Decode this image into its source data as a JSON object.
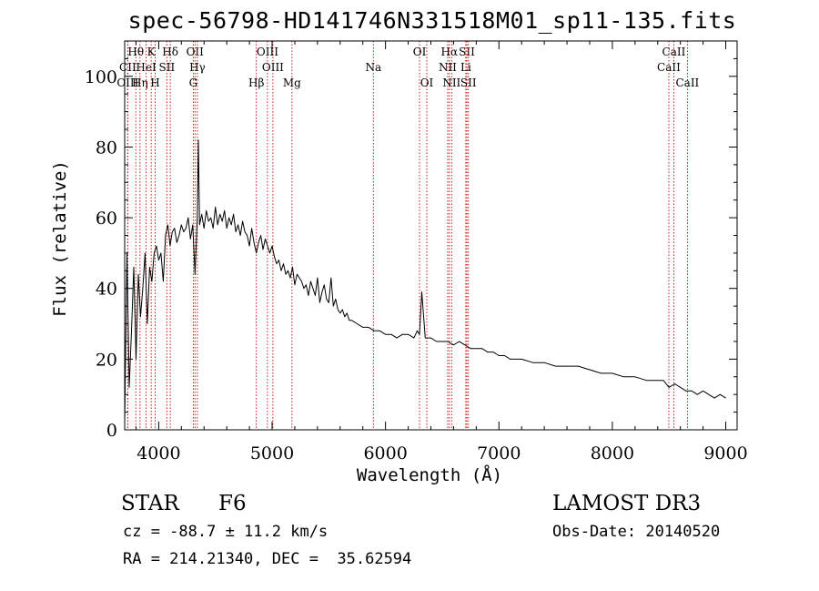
{
  "title": "spec-56798-HD141746N331518M01_sp11-135.fits",
  "object_class": "STAR",
  "subclass": "F6",
  "survey": "LAMOST DR3",
  "redshift_text": "cz = -88.7 ± 11.2 km/s",
  "obs_date_text": "Obs-Date: 20140520",
  "coords_text": "RA = 214.21340, DEC =  35.62594",
  "colors": {
    "spectrum": "#000000",
    "line_marker": "#cc0000",
    "background": "#ffffff"
  },
  "chart_data": {
    "type": "line",
    "title": "spec-56798-HD141746N331518M01_sp11-135.fits",
    "xlabel": "Wavelength (Å)",
    "ylabel": "Flux (relative)",
    "xlim": [
      3700,
      9100
    ],
    "ylim": [
      0,
      110
    ],
    "xticks": [
      4000,
      5000,
      6000,
      7000,
      8000,
      9000
    ],
    "yticks": [
      0,
      20,
      40,
      60,
      80,
      100
    ],
    "grid": false,
    "series": [
      {
        "name": "spectrum",
        "x": [
          3700,
          3720,
          3740,
          3760,
          3780,
          3800,
          3820,
          3840,
          3860,
          3880,
          3900,
          3920,
          3940,
          3960,
          3980,
          4000,
          4020,
          4040,
          4060,
          4080,
          4100,
          4120,
          4140,
          4160,
          4180,
          4200,
          4220,
          4240,
          4260,
          4280,
          4300,
          4320,
          4340,
          4350,
          4360,
          4380,
          4400,
          4420,
          4440,
          4460,
          4480,
          4500,
          4520,
          4540,
          4560,
          4580,
          4600,
          4620,
          4640,
          4660,
          4680,
          4700,
          4720,
          4740,
          4760,
          4780,
          4800,
          4820,
          4840,
          4861,
          4880,
          4900,
          4920,
          4940,
          4960,
          4980,
          5000,
          5020,
          5040,
          5060,
          5080,
          5100,
          5120,
          5140,
          5160,
          5180,
          5200,
          5220,
          5240,
          5260,
          5280,
          5300,
          5320,
          5340,
          5360,
          5380,
          5400,
          5420,
          5440,
          5460,
          5480,
          5500,
          5520,
          5540,
          5560,
          5580,
          5600,
          5620,
          5640,
          5660,
          5680,
          5700,
          5750,
          5800,
          5850,
          5900,
          5950,
          6000,
          6050,
          6100,
          6150,
          6200,
          6250,
          6280,
          6300,
          6320,
          6350,
          6400,
          6450,
          6500,
          6550,
          6600,
          6650,
          6700,
          6750,
          6800,
          6850,
          6900,
          6950,
          7000,
          7050,
          7100,
          7200,
          7300,
          7400,
          7500,
          7600,
          7700,
          7800,
          7900,
          8000,
          8100,
          8200,
          8300,
          8400,
          8450,
          8500,
          8550,
          8600,
          8650,
          8700,
          8750,
          8800,
          8850,
          8900,
          8950,
          9000
        ],
        "values": [
          2,
          50,
          12,
          28,
          46,
          20,
          44,
          32,
          40,
          50,
          30,
          46,
          42,
          50,
          52,
          48,
          50,
          42,
          55,
          58,
          52,
          56,
          57,
          53,
          55,
          58,
          56,
          57,
          60,
          54,
          58,
          44,
          60,
          82,
          58,
          61,
          57,
          62,
          59,
          60,
          57,
          63,
          58,
          61,
          59,
          62,
          57,
          60,
          58,
          61,
          56,
          58,
          55,
          59,
          56,
          55,
          52,
          57,
          53,
          50,
          53,
          55,
          51,
          54,
          52,
          50,
          52,
          49,
          47,
          48,
          45,
          47,
          44,
          45,
          43,
          46,
          41,
          44,
          43,
          42,
          40,
          41,
          38,
          42,
          40,
          38,
          43,
          36,
          39,
          41,
          37,
          36,
          43,
          35,
          37,
          34,
          33,
          34,
          32,
          33,
          31,
          31,
          30,
          29,
          29,
          28,
          28,
          27,
          27,
          26,
          27,
          27,
          26,
          28,
          27,
          39,
          26,
          26,
          25,
          25,
          25,
          24,
          25,
          24,
          23,
          23,
          23,
          22,
          22,
          21,
          21,
          20,
          20,
          19,
          19,
          18,
          18,
          18,
          17,
          16,
          16,
          15,
          15,
          14,
          14,
          14,
          12,
          13,
          12,
          11,
          11,
          10,
          11,
          10,
          9,
          10,
          9
        ]
      }
    ],
    "lines": [
      {
        "name": "Hθ",
        "wave": 3798,
        "row": 1
      },
      {
        "name": "CII",
        "wave": 3727,
        "row": 2
      },
      {
        "name": "OIII",
        "wave": 3727,
        "row": 3
      },
      {
        "name": "K",
        "wave": 3934,
        "row": 1
      },
      {
        "name": "Hη",
        "wave": 3835,
        "row": 3
      },
      {
        "name": "HeI",
        "wave": 3889,
        "row": 2
      },
      {
        "name": "H",
        "wave": 3969,
        "row": 3
      },
      {
        "name": "SII",
        "wave": 4072,
        "row": 2
      },
      {
        "name": "Hδ",
        "wave": 4102,
        "row": 1
      },
      {
        "name": "OII",
        "wave": 4320,
        "row": 1
      },
      {
        "name": "Hγ",
        "wave": 4341,
        "row": 2
      },
      {
        "name": "G",
        "wave": 4305,
        "row": 3
      },
      {
        "name": "Hβ",
        "wave": 4861,
        "row": 3
      },
      {
        "name": "OIII",
        "wave": 4959,
        "row": 1
      },
      {
        "name": "OIII",
        "wave": 5007,
        "row": 2
      },
      {
        "name": "Mg",
        "wave": 5175,
        "row": 3
      },
      {
        "name": "Na",
        "wave": 5893,
        "row": 2
      },
      {
        "name": "OI",
        "wave": 6300,
        "row": 1
      },
      {
        "name": "OI",
        "wave": 6364,
        "row": 3
      },
      {
        "name": "Hα",
        "wave": 6563,
        "row": 1
      },
      {
        "name": "NII",
        "wave": 6548,
        "row": 2
      },
      {
        "name": "NII",
        "wave": 6583,
        "row": 3
      },
      {
        "name": "SII",
        "wave": 6717,
        "row": 1
      },
      {
        "name": "Li",
        "wave": 6708,
        "row": 2
      },
      {
        "name": "SII",
        "wave": 6731,
        "row": 3
      },
      {
        "name": "CaII",
        "wave": 8542,
        "row": 1
      },
      {
        "name": "CaII",
        "wave": 8498,
        "row": 2
      },
      {
        "name": "CaII",
        "wave": 8662,
        "row": 3
      }
    ]
  }
}
